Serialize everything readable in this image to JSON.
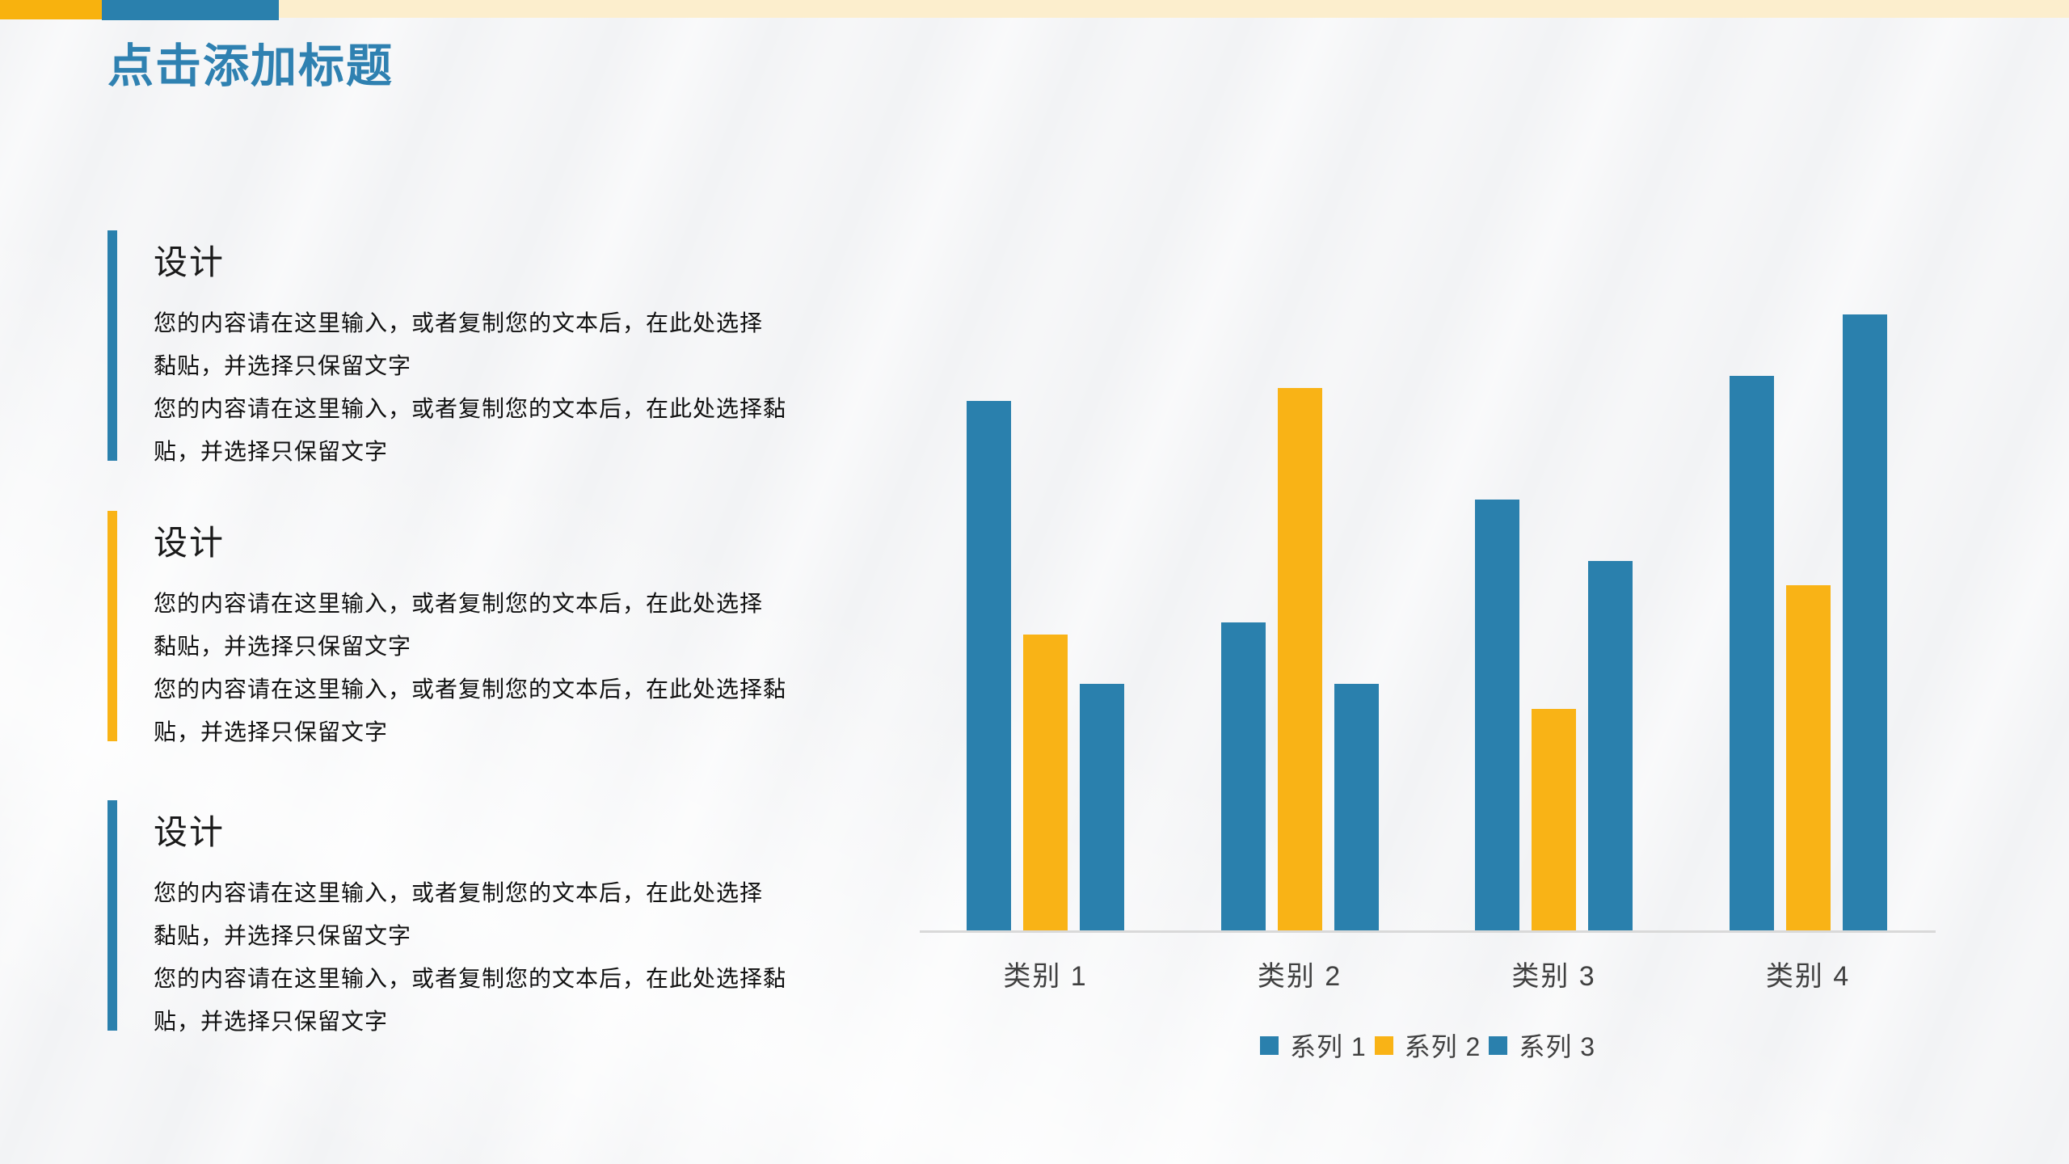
{
  "slide": {
    "title": "点击添加标题"
  },
  "colors": {
    "title_blue": "#2f81b1",
    "accent_blue": "#2a80ad",
    "accent_yellow": "#f9b316",
    "top_bar_orange": "#f8b20e",
    "top_bar_blue": "#2a80ad",
    "top_bar_cream": "#fceecd",
    "axis_line": "#d9d9d9",
    "axis_label": "#404040",
    "body_text": "#111111"
  },
  "blocks": [
    {
      "heading": "设计",
      "accent_color": "#2a80ad",
      "lines": [
        "您的内容请在这里输入，或者复制您的文本后，在此处选择",
        "黏贴，并选择只保留文字",
        "您的内容请在这里输入，或者复制您的文本后，在此处选择黏",
        "贴，并选择只保留文字"
      ]
    },
    {
      "heading": "设计",
      "accent_color": "#f9b316",
      "lines": [
        "您的内容请在这里输入，或者复制您的文本后，在此处选择",
        "黏贴，并选择只保留文字",
        "您的内容请在这里输入，或者复制您的文本后，在此处选择黏",
        "贴，并选择只保留文字"
      ]
    },
    {
      "heading": "设计",
      "accent_color": "#2a80ad",
      "lines": [
        "您的内容请在这里输入，或者复制您的文本后，在此处选择",
        "黏贴，并选择只保留文字",
        "您的内容请在这里输入，或者复制您的文本后，在此处选择黏",
        "贴，并选择只保留文字"
      ]
    }
  ],
  "chart_data": {
    "type": "bar",
    "categories": [
      "类别 1",
      "类别 2",
      "类别 3",
      "类别 4"
    ],
    "series": [
      {
        "name": "系列 1",
        "color": "#2a80ad",
        "values": [
          4.3,
          2.5,
          3.5,
          4.5
        ]
      },
      {
        "name": "系列 2",
        "color": "#f9b316",
        "values": [
          2.4,
          4.4,
          1.8,
          2.8
        ]
      },
      {
        "name": "系列 3",
        "color": "#2a80ad",
        "values": [
          2.0,
          2.0,
          3.0,
          5.0
        ]
      }
    ],
    "title": "",
    "xlabel": "",
    "ylabel": "",
    "ylim": [
      0,
      5
    ],
    "grid": false,
    "legend_position": "bottom"
  }
}
